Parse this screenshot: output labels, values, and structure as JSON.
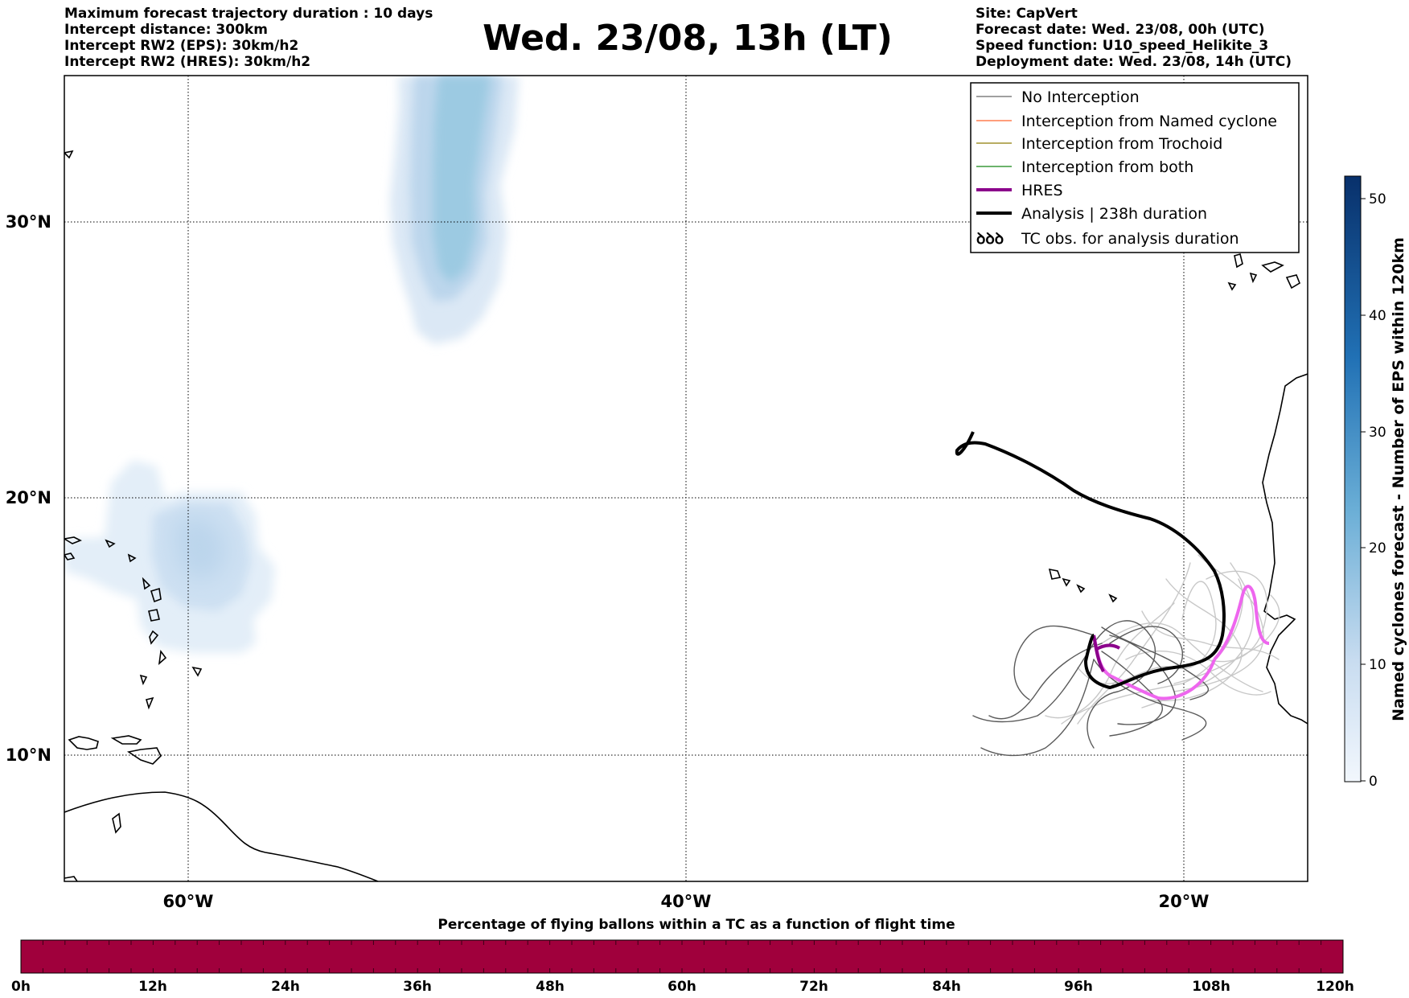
{
  "header": {
    "left_lines": [
      "Maximum forecast trajectory duration : 10 days",
      "Intercept distance: 300km",
      "Intercept RW2 (EPS):  30km/h2",
      "Intercept RW2 (HRES): 30km/h2"
    ],
    "title": "Wed. 23/08, 13h (LT)",
    "right_lines": [
      "Site: CapVert",
      "Forecast date: Wed. 23/08, 00h (UTC)",
      "Speed function: U10_speed_Helikite_3",
      "Deployment date: Wed. 23/08, 14h (UTC)"
    ]
  },
  "map": {
    "lon_range": [
      -65,
      -15
    ],
    "lat_range": [
      5.4,
      34.8
    ],
    "lon_ticks": [
      {
        "value": -60,
        "label": "60°W"
      },
      {
        "value": -40,
        "label": "40°W"
      },
      {
        "value": -20,
        "label": "20°W"
      }
    ],
    "lat_ticks": [
      {
        "value": 30,
        "label": "30°N"
      },
      {
        "value": 20,
        "label": "20°N"
      },
      {
        "value": 10,
        "label": "10°N"
      }
    ],
    "cyclone_density_areas": [
      {
        "name": "north-atlantic-cyclone",
        "intensity": "medium"
      },
      {
        "name": "caribbean-cyclone",
        "intensity": "low"
      }
    ]
  },
  "legend": {
    "placement": "top-right",
    "items": [
      {
        "label": "No Interception",
        "color": "#808080",
        "style": "thin-line"
      },
      {
        "label": "Interception from Named cyclone",
        "color": "#ff7f50",
        "style": "thin-line"
      },
      {
        "label": "Interception from Trochoid",
        "color": "#a0922e",
        "style": "thin-line"
      },
      {
        "label": "Interception from both",
        "color": "#3a9a3a",
        "style": "thin-line"
      },
      {
        "label": "HRES",
        "color": "#8b008b",
        "style": "thick-line"
      },
      {
        "label": "Analysis | 238h duration",
        "color": "#000000",
        "style": "thick-line"
      },
      {
        "label": "TC obs. for analysis duration",
        "color": "#000000",
        "style": "cyclone-symbol"
      }
    ]
  },
  "colorbar_right": {
    "label": "Named cyclones forecast - Number of EPS within 120km",
    "ticks": [
      "0",
      "10",
      "20",
      "30",
      "40",
      "50"
    ],
    "range": [
      0,
      52
    ],
    "colors": [
      "#f2f7fd",
      "#08306b"
    ]
  },
  "colorbar_bottom": {
    "title": "Percentage of flying ballons within a TC as a function of flight time",
    "ticks": [
      "0h",
      "12h",
      "24h",
      "36h",
      "48h",
      "60h",
      "72h",
      "84h",
      "96h",
      "108h",
      "120h"
    ],
    "fill_color": "#a0003c"
  }
}
